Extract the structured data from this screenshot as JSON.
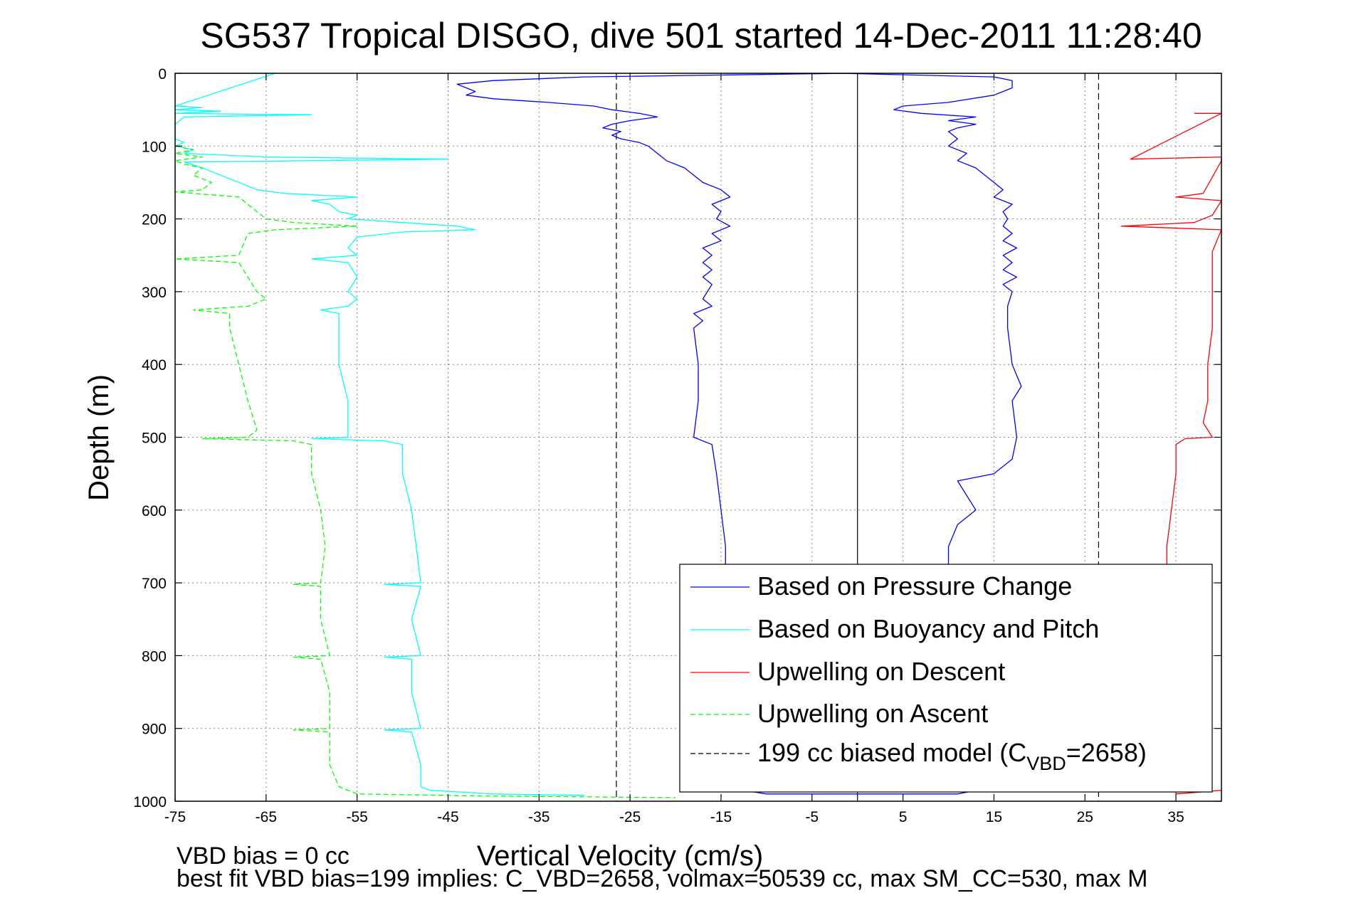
{
  "chart_data": {
    "type": "line",
    "title": "SG537 Tropical DISGO, dive 501 started 14-Dec-2011 11:28:40",
    "xlabel": "Vertical Velocity (cm/s)",
    "ylabel": "Depth (m)",
    "xlim": [
      -75,
      40
    ],
    "ylim": [
      0,
      1000
    ],
    "y_reversed": true,
    "grid": "dotted",
    "legend_placement": "bottom-right",
    "x_ticks": [
      "-75",
      "-65",
      "-55",
      "-45",
      "-35",
      "-25",
      "-15",
      "-5",
      "5",
      "15",
      "25",
      "35"
    ],
    "y_ticks": [
      "0",
      "100",
      "200",
      "300",
      "400",
      "500",
      "600",
      "700",
      "800",
      "900",
      "1000"
    ],
    "reference_lines": {
      "zero": {
        "x": 0,
        "color": "#000000",
        "style": "solid"
      },
      "model_bias": {
        "x": [
          -26.5,
          26.5
        ],
        "color": "#000000",
        "style": "dashed"
      }
    },
    "series": [
      {
        "name": "Based on Pressure Change",
        "color": "#0000ff",
        "style": "solid",
        "descent": [
          [
            0,
            -1
          ],
          [
            5,
            -30
          ],
          [
            10,
            -40
          ],
          [
            15,
            -44
          ],
          [
            20,
            -43
          ],
          [
            25,
            -42
          ],
          [
            30,
            -43
          ],
          [
            35,
            -40
          ],
          [
            40,
            -34
          ],
          [
            45,
            -29
          ],
          [
            50,
            -27
          ],
          [
            55,
            -24
          ],
          [
            60,
            -22
          ],
          [
            65,
            -25
          ],
          [
            70,
            -27
          ],
          [
            75,
            -28
          ],
          [
            80,
            -26
          ],
          [
            85,
            -27
          ],
          [
            90,
            -26
          ],
          [
            95,
            -24
          ],
          [
            100,
            -23
          ],
          [
            110,
            -22
          ],
          [
            120,
            -21
          ],
          [
            130,
            -19
          ],
          [
            140,
            -18
          ],
          [
            150,
            -17
          ],
          [
            160,
            -15
          ],
          [
            170,
            -14
          ],
          [
            180,
            -16
          ],
          [
            190,
            -15
          ],
          [
            200,
            -15.5
          ],
          [
            210,
            -14
          ],
          [
            220,
            -16
          ],
          [
            230,
            -15
          ],
          [
            240,
            -17
          ],
          [
            250,
            -16
          ],
          [
            260,
            -17
          ],
          [
            270,
            -16
          ],
          [
            280,
            -17
          ],
          [
            290,
            -16
          ],
          [
            300,
            -16.5
          ],
          [
            310,
            -17
          ],
          [
            320,
            -16
          ],
          [
            330,
            -18
          ],
          [
            340,
            -17
          ],
          [
            350,
            -18
          ],
          [
            400,
            -17.5
          ],
          [
            450,
            -17.5
          ],
          [
            500,
            -18
          ],
          [
            510,
            -16
          ],
          [
            550,
            -15.5
          ],
          [
            600,
            -15
          ],
          [
            650,
            -14.5
          ],
          [
            680,
            -14.5
          ]
        ],
        "ascent": [
          [
            0,
            -2
          ],
          [
            5,
            15
          ],
          [
            10,
            17
          ],
          [
            20,
            17
          ],
          [
            30,
            15
          ],
          [
            40,
            10
          ],
          [
            45,
            5
          ],
          [
            50,
            4
          ],
          [
            55,
            7
          ],
          [
            60,
            13
          ],
          [
            65,
            10
          ],
          [
            70,
            13
          ],
          [
            75,
            11
          ],
          [
            80,
            10
          ],
          [
            90,
            11
          ],
          [
            100,
            10
          ],
          [
            110,
            12
          ],
          [
            120,
            11
          ],
          [
            130,
            13
          ],
          [
            140,
            14
          ],
          [
            150,
            15
          ],
          [
            160,
            16
          ],
          [
            170,
            15
          ],
          [
            180,
            17
          ],
          [
            190,
            16
          ],
          [
            200,
            16.5
          ],
          [
            210,
            16
          ],
          [
            220,
            17
          ],
          [
            230,
            16
          ],
          [
            240,
            17.5
          ],
          [
            250,
            16
          ],
          [
            260,
            17
          ],
          [
            270,
            16
          ],
          [
            280,
            17.5
          ],
          [
            290,
            16
          ],
          [
            300,
            17
          ],
          [
            320,
            16.5
          ],
          [
            350,
            16.5
          ],
          [
            400,
            17
          ],
          [
            430,
            18
          ],
          [
            450,
            17
          ],
          [
            500,
            17.5
          ],
          [
            530,
            17
          ],
          [
            550,
            15
          ],
          [
            560,
            11
          ],
          [
            600,
            13
          ],
          [
            620,
            11
          ],
          [
            650,
            10
          ],
          [
            680,
            10
          ]
        ],
        "bottom": [
          [
            980,
            -15
          ],
          [
            990,
            -10
          ],
          [
            990,
            11
          ],
          [
            985,
            13
          ]
        ]
      },
      {
        "name": "Based on Buoyancy and Pitch",
        "color": "#00ffff",
        "style": "solid",
        "profile": [
          [
            0,
            -75
          ],
          [
            0,
            -64
          ],
          [
            45,
            -75
          ],
          [
            47,
            -72
          ],
          [
            50,
            -75
          ],
          [
            52,
            -70
          ],
          [
            55,
            -75
          ],
          [
            57,
            -60
          ],
          [
            60,
            -74
          ],
          [
            70,
            -75
          ],
          [
            90,
            -75
          ],
          [
            95,
            -74
          ],
          [
            100,
            -75
          ],
          [
            105,
            -73
          ],
          [
            110,
            -74
          ],
          [
            115,
            -65
          ],
          [
            118,
            -45
          ],
          [
            122,
            -74
          ],
          [
            130,
            -72
          ],
          [
            140,
            -70
          ],
          [
            150,
            -68
          ],
          [
            160,
            -66
          ],
          [
            165,
            -63
          ],
          [
            170,
            -55
          ],
          [
            175,
            -60
          ],
          [
            180,
            -58
          ],
          [
            190,
            -57
          ],
          [
            195,
            -55
          ],
          [
            200,
            -56
          ],
          [
            205,
            -50
          ],
          [
            210,
            -44
          ],
          [
            215,
            -42
          ],
          [
            218,
            -50
          ],
          [
            225,
            -55
          ],
          [
            240,
            -56
          ],
          [
            250,
            -55
          ],
          [
            255,
            -60
          ],
          [
            260,
            -56
          ],
          [
            280,
            -55
          ],
          [
            300,
            -56
          ],
          [
            310,
            -55
          ],
          [
            320,
            -56
          ],
          [
            325,
            -59
          ],
          [
            330,
            -57
          ],
          [
            350,
            -57
          ],
          [
            400,
            -57
          ],
          [
            450,
            -56
          ],
          [
            500,
            -56
          ],
          [
            502,
            -60
          ],
          [
            505,
            -52
          ],
          [
            510,
            -50
          ],
          [
            550,
            -50
          ],
          [
            600,
            -49
          ],
          [
            650,
            -48.5
          ],
          [
            700,
            -48
          ],
          [
            702,
            -52
          ],
          [
            705,
            -48
          ],
          [
            750,
            -49
          ],
          [
            800,
            -48
          ],
          [
            802,
            -52
          ],
          [
            805,
            -49
          ],
          [
            850,
            -49
          ],
          [
            900,
            -48
          ],
          [
            902,
            -52
          ],
          [
            905,
            -49
          ],
          [
            950,
            -48
          ],
          [
            980,
            -48
          ],
          [
            985,
            -47
          ],
          [
            990,
            -40
          ],
          [
            992,
            -30
          ]
        ]
      },
      {
        "name": "Upwelling on Descent",
        "color": "#ff0000",
        "style": "solid",
        "profile": [
          [
            55,
            37
          ],
          [
            55,
            40
          ],
          [
            118,
            30
          ],
          [
            115,
            40
          ],
          [
            120,
            40
          ],
          [
            165,
            38
          ],
          [
            170,
            35
          ],
          [
            175,
            40
          ],
          [
            195,
            39
          ],
          [
            205,
            37
          ],
          [
            210,
            29
          ],
          [
            215,
            40
          ],
          [
            245,
            39
          ],
          [
            300,
            39
          ],
          [
            350,
            39
          ],
          [
            400,
            38.5
          ],
          [
            450,
            38.5
          ],
          [
            480,
            38
          ],
          [
            500,
            39
          ],
          [
            502,
            36
          ],
          [
            510,
            35
          ],
          [
            550,
            35
          ],
          [
            600,
            34.5
          ],
          [
            650,
            34
          ],
          [
            680,
            34
          ],
          [
            990,
            35
          ],
          [
            985,
            40
          ]
        ]
      },
      {
        "name": "Upwelling on Ascent",
        "color": "#00ff00",
        "style": "dashed",
        "profile": [
          [
            100,
            -75
          ],
          [
            105,
            -73
          ],
          [
            110,
            -75
          ],
          [
            115,
            -72
          ],
          [
            120,
            -75
          ],
          [
            125,
            -74
          ],
          [
            130,
            -72
          ],
          [
            140,
            -73
          ],
          [
            150,
            -71
          ],
          [
            160,
            -72
          ],
          [
            163,
            -75
          ],
          [
            170,
            -68
          ],
          [
            180,
            -67
          ],
          [
            190,
            -66
          ],
          [
            200,
            -65
          ],
          [
            205,
            -62
          ],
          [
            210,
            -55
          ],
          [
            215,
            -64
          ],
          [
            220,
            -67
          ],
          [
            250,
            -68
          ],
          [
            255,
            -75
          ],
          [
            260,
            -68
          ],
          [
            280,
            -67
          ],
          [
            300,
            -66
          ],
          [
            310,
            -65
          ],
          [
            320,
            -67
          ],
          [
            325,
            -73
          ],
          [
            330,
            -69
          ],
          [
            350,
            -69
          ],
          [
            400,
            -68
          ],
          [
            450,
            -67
          ],
          [
            490,
            -66
          ],
          [
            500,
            -67
          ],
          [
            502,
            -72
          ],
          [
            505,
            -62
          ],
          [
            510,
            -60
          ],
          [
            550,
            -60
          ],
          [
            600,
            -59
          ],
          [
            650,
            -58.5
          ],
          [
            700,
            -59
          ],
          [
            702,
            -62
          ],
          [
            705,
            -59
          ],
          [
            750,
            -59
          ],
          [
            800,
            -58
          ],
          [
            802,
            -62
          ],
          [
            805,
            -59
          ],
          [
            850,
            -58
          ],
          [
            900,
            -58
          ],
          [
            902,
            -62
          ],
          [
            905,
            -58
          ],
          [
            950,
            -58
          ],
          [
            980,
            -57
          ],
          [
            990,
            -55
          ],
          [
            993,
            -40
          ],
          [
            995,
            -20
          ]
        ]
      },
      {
        "name": "199 cc biased model (C_VBD=2658)",
        "color": "#000000",
        "style": "dashed"
      }
    ],
    "legend": {
      "entries": [
        "Based on Pressure Change",
        "Based on Buoyancy and Pitch",
        "Upwelling on Descent",
        "Upwelling on Ascent"
      ],
      "last_entry": {
        "prefix": "199 cc biased model (C",
        "sub": "VBD",
        "suffix": "=2658)"
      }
    },
    "notes": [
      "VBD bias = 0 cc",
      "best fit VBD bias=199 implies: C_VBD=2658, volmax=50539 cc, max SM_CC=530, max M"
    ]
  }
}
